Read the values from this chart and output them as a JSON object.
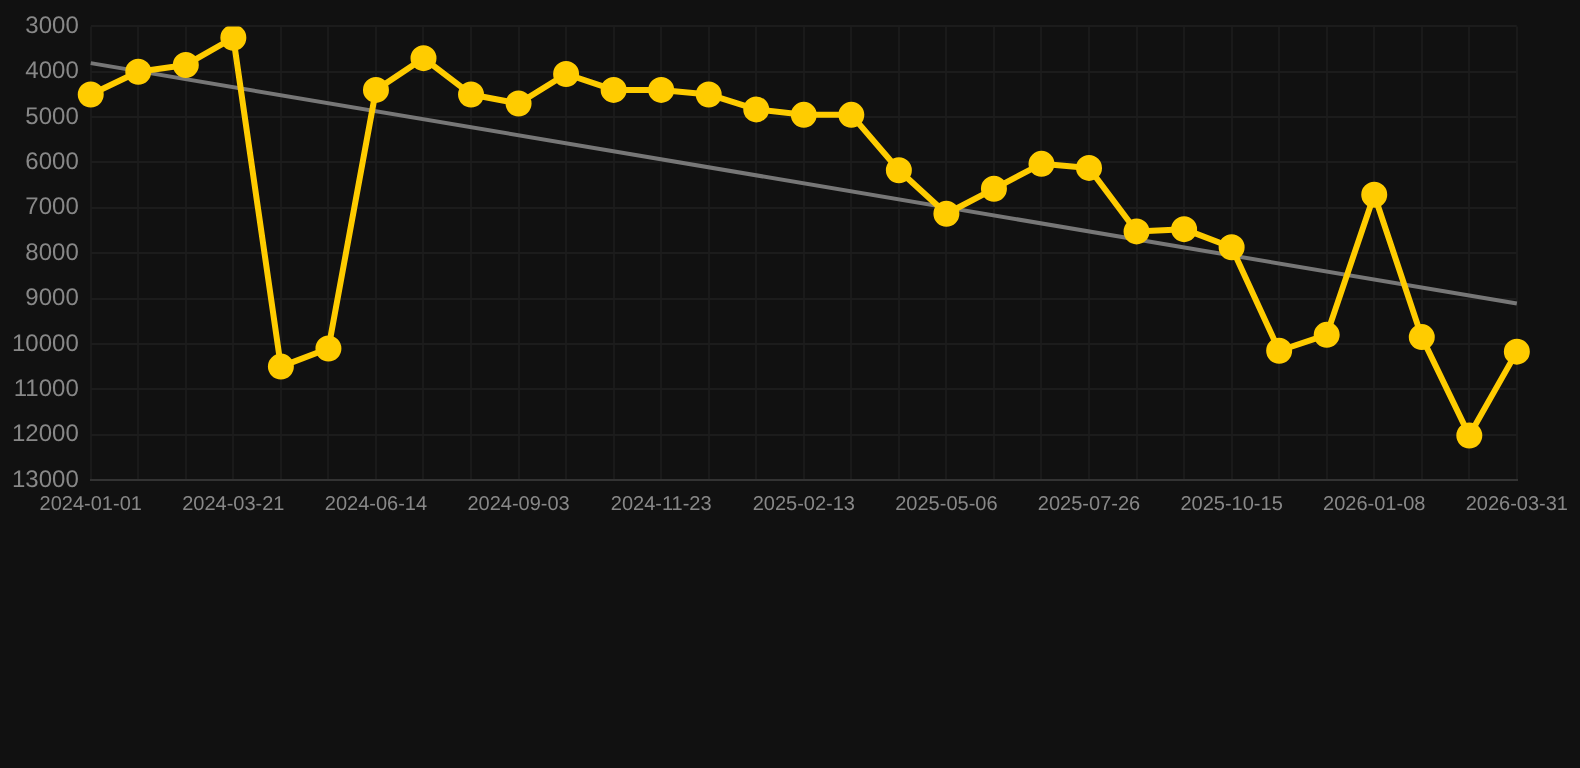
{
  "chart_data": {
    "type": "line",
    "categories": [
      "2024-01-01",
      null,
      null,
      "2024-03-21",
      null,
      null,
      "2024-06-14",
      null,
      null,
      "2024-09-03",
      null,
      null,
      "2024-11-23",
      null,
      null,
      "2025-02-13",
      null,
      null,
      "2025-05-06",
      null,
      null,
      "2025-07-26",
      null,
      null,
      "2025-10-15",
      null,
      null,
      "2026-01-08",
      null,
      null,
      "2026-03-31"
    ],
    "series": [
      {
        "color": "#ffcc00",
        "marker": "circle",
        "values": [
          4500,
          4000,
          3850,
          3250,
          10500,
          10100,
          4400,
          3700,
          4500,
          4700,
          4050,
          4400,
          4400,
          4500,
          4830,
          4950,
          4950,
          6170,
          7130,
          6580,
          6030,
          6120,
          7520,
          7470,
          7870,
          10150,
          9800,
          6710,
          9850,
          12020,
          10170
        ]
      },
      {
        "type": "line",
        "color": "#777777",
        "marker": "none",
        "values": [
          3810,
          null,
          null,
          null,
          null,
          null,
          null,
          null,
          null,
          null,
          null,
          null,
          null,
          null,
          null,
          null,
          null,
          null,
          null,
          null,
          null,
          null,
          null,
          null,
          null,
          null,
          null,
          null,
          null,
          null,
          9110
        ]
      }
    ],
    "ylim": [
      13000,
      3000
    ],
    "yticks": [
      3000,
      4000,
      5000,
      6000,
      7000,
      8000,
      9000,
      10000,
      11000,
      12000,
      13000
    ],
    "grid": true,
    "legend": false
  }
}
